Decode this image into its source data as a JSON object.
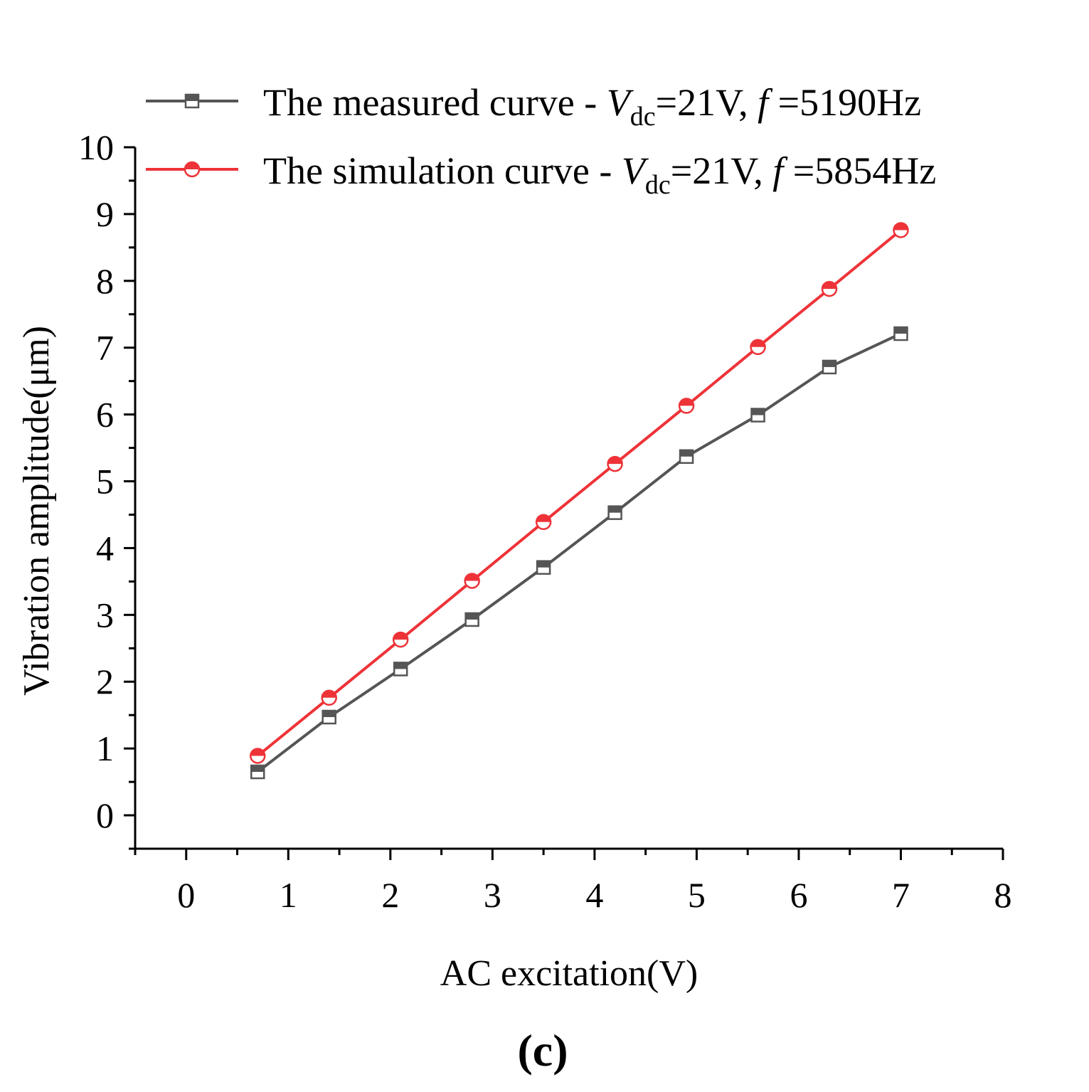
{
  "chart_data": {
    "type": "line",
    "xlabel": "AC excitation(V)",
    "ylabel": "Vibration amplitude(μm)",
    "xlim": [
      -0.5,
      8
    ],
    "ylim": [
      -0.5,
      10
    ],
    "xticks": [
      0,
      1,
      2,
      3,
      4,
      5,
      6,
      7,
      8
    ],
    "yticks": [
      0,
      1,
      2,
      3,
      4,
      5,
      6,
      7,
      8,
      9,
      10
    ],
    "x": [
      0.7,
      1.4,
      2.1,
      2.8,
      3.5,
      4.2,
      4.9,
      5.6,
      6.3,
      7.0
    ],
    "series": [
      {
        "name": "The measured curve - Vdc=21V, f =5190Hz",
        "color": "#555555",
        "marker": "square-half",
        "values": [
          0.65,
          1.47,
          2.19,
          2.93,
          3.71,
          4.53,
          5.37,
          5.99,
          6.71,
          7.21
        ],
        "legend": {
          "prefix": "The measured curve - ",
          "v": "V",
          "sub": "dc",
          "mid": "=21V, ",
          "f": "f",
          "suffix": " =5190Hz"
        }
      },
      {
        "name": "The simulation curve - Vdc=21V, f =5854Hz",
        "color": "#ee3338",
        "marker": "circle-half",
        "values": [
          0.89,
          1.76,
          2.63,
          3.51,
          4.39,
          5.26,
          6.13,
          7.01,
          7.88,
          8.76
        ],
        "legend": {
          "prefix": "The simulation curve - ",
          "v": "V",
          "sub": "dc",
          "mid": "=21V, ",
          "f": "f",
          "suffix": " =5854Hz"
        }
      }
    ],
    "panel_label": "(c)",
    "legend_position": "top-left",
    "grid": false
  }
}
